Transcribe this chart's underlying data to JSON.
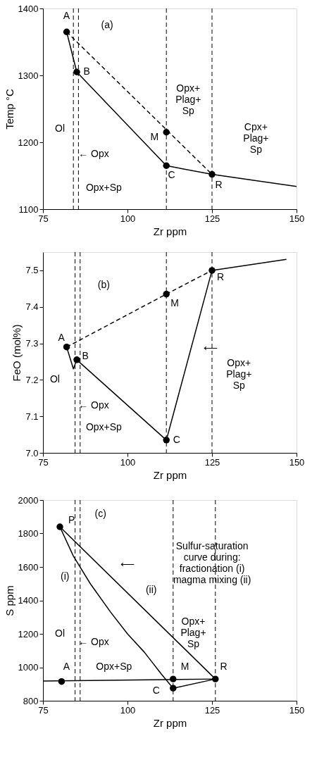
{
  "chart_data": [
    {
      "type": "line",
      "xlabel": "Zr ppm",
      "ylabel": "Temp °C",
      "xlim": [
        75,
        150
      ],
      "ylim": [
        1100,
        1400
      ],
      "xticks": [
        75,
        100,
        125,
        150
      ],
      "yticks": [
        1100,
        1200,
        1300,
        1400
      ],
      "grid": false,
      "series": [
        {
          "line_style": "solid",
          "color": "#000000",
          "x": [
            82,
            85,
            111.5,
            125,
            150
          ],
          "values": [
            1365,
            1305,
            1165,
            1152,
            1134
          ]
        },
        {
          "line_style": "dashed",
          "color": "#000000",
          "x": [
            82,
            125
          ],
          "values": [
            1365,
            1152
          ]
        },
        {
          "type": "scatter",
          "marker": "circle",
          "color": "#000000",
          "x": [
            82,
            85,
            111.5,
            111.5,
            125
          ],
          "values": [
            1365,
            1305,
            1215,
            1165,
            1152
          ]
        }
      ],
      "ref_lines": [
        {
          "axis": "x",
          "value": 84,
          "line_style": "dashed"
        },
        {
          "axis": "x",
          "value": 85.5,
          "line_style": "dashed"
        },
        {
          "axis": "x",
          "value": 111.5,
          "line_style": "dashed"
        },
        {
          "axis": "x",
          "value": 125,
          "line_style": "dashed"
        }
      ],
      "annotations": [
        "(a)",
        "A",
        "B",
        "M",
        "C",
        "R",
        "Ol",
        "← Opx",
        "Opx+Sp",
        "Opx+\nPlag+\nSp",
        "Cpx+\nPlag+\nSp"
      ]
    },
    {
      "type": "line",
      "xlabel": "Zr ppm",
      "ylabel": "FeO (mol%)",
      "xlim": [
        75,
        150
      ],
      "ylim": [
        7.0,
        7.55
      ],
      "xticks": [
        75,
        100,
        125,
        150
      ],
      "yticks": [
        {
          "value": 7.0,
          "label": "7.0"
        },
        7.1,
        7.2,
        7.3,
        7.4,
        7.5
      ],
      "grid": false,
      "series": [
        {
          "line_style": "solid",
          "color": "#000000",
          "x": [
            82,
            84,
            85,
            111.5,
            125,
            147
          ],
          "values": [
            7.29,
            7.23,
            7.255,
            7.035,
            7.5,
            7.53
          ]
        },
        {
          "line_style": "dashed",
          "color": "#000000",
          "x": [
            82,
            111.5,
            125
          ],
          "values": [
            7.29,
            7.435,
            7.5
          ]
        },
        {
          "type": "scatter",
          "marker": "circle",
          "color": "#000000",
          "x": [
            82,
            85,
            111.5,
            111.5,
            125
          ],
          "values": [
            7.29,
            7.255,
            7.435,
            7.035,
            7.5
          ]
        }
      ],
      "ref_lines": [
        {
          "axis": "x",
          "value": 84.5,
          "line_style": "dashed"
        },
        {
          "axis": "x",
          "value": 86,
          "line_style": "dashed"
        },
        {
          "axis": "x",
          "value": 111.5,
          "line_style": "dashed"
        },
        {
          "axis": "x",
          "value": 125,
          "line_style": "dashed"
        }
      ],
      "annotations": [
        "(b)",
        "A",
        "B",
        "M",
        "C",
        "R",
        "Ol",
        "← Opx",
        "Opx+Sp",
        "⟵",
        "Opx+\nPlag+\nSp"
      ]
    },
    {
      "type": "line",
      "xlabel": "Zr ppm",
      "ylabel": "S ppm",
      "xlim": [
        75,
        150
      ],
      "ylim": [
        800,
        2000
      ],
      "xticks": [
        75,
        100,
        125,
        150
      ],
      "yticks": [
        800,
        1000,
        1200,
        1400,
        1600,
        1800,
        2000
      ],
      "grid": false,
      "series": [
        {
          "line_style": "solid",
          "color": "#000000",
          "x": [
            80,
            84,
            89,
            95,
            100,
            105,
            110,
            113.5
          ],
          "values": [
            1840,
            1665,
            1500,
            1330,
            1200,
            1090,
            960,
            875
          ]
        },
        {
          "line_style": "solid",
          "color": "#000000",
          "x": [
            80,
            126
          ],
          "values": [
            1840,
            930
          ]
        },
        {
          "line_style": "solid",
          "color": "#000000",
          "x": [
            75,
            126
          ],
          "values": [
            918,
            930
          ]
        },
        {
          "line_style": "solid",
          "color": "#000000",
          "x": [
            113.5,
            126
          ],
          "values": [
            875,
            930
          ]
        },
        {
          "type": "scatter",
          "marker": "circle",
          "color": "#000000",
          "x": [
            80,
            80.5,
            113.5,
            113.5,
            126
          ],
          "values": [
            1840,
            915,
            930,
            875,
            930
          ]
        }
      ],
      "ref_lines": [
        {
          "axis": "x",
          "value": 84.5,
          "line_style": "dashed"
        },
        {
          "axis": "x",
          "value": 86,
          "line_style": "dashed"
        },
        {
          "axis": "x",
          "value": 113.5,
          "line_style": "dashed"
        },
        {
          "axis": "x",
          "value": 126,
          "line_style": "dashed"
        }
      ],
      "annotations": [
        "(c)",
        "P",
        "Sulfur-saturation\ncurve during:\nfractionation   (i)\nmagma mixing (ii)",
        "⟵",
        "(i)",
        "(ii)",
        "Ol",
        "← Opx",
        "Opx+Sp",
        "Opx+\nPlag+\nSp",
        "A",
        "M",
        "C",
        "R"
      ]
    }
  ]
}
